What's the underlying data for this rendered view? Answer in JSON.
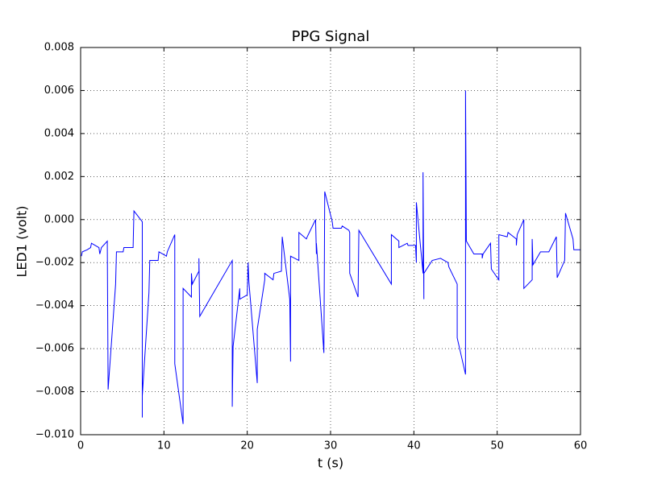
{
  "chart_data": {
    "type": "line",
    "title": "PPG Signal",
    "x_label": "t (s)",
    "y_label": "LED1 (volt)",
    "color": "#0000ff",
    "grid": true,
    "xlim": [
      0,
      60
    ],
    "xticks": [
      0,
      10,
      20,
      30,
      40,
      50,
      60
    ],
    "ylim": [
      -0.01,
      0.008
    ],
    "yticks": [
      {
        "value": -0.01,
        "label": "−0.010"
      },
      {
        "value": -0.008,
        "label": "−0.008"
      },
      {
        "value": -0.006,
        "label": "−0.006"
      },
      {
        "value": -0.004,
        "label": "−0.004"
      },
      {
        "value": -0.002,
        "label": "−0.002"
      },
      {
        "value": 0,
        "label": "0.000"
      },
      0.002,
      0.004,
      0.006,
      0.008
    ],
    "x": [
      0.1,
      0.2,
      0.8,
      1.2,
      1.3,
      2.2,
      2.3,
      2.5,
      3.2,
      3.3,
      4.2,
      4.3,
      5.1,
      5.2,
      6.3,
      6.4,
      7.4,
      7.4,
      7.4,
      8.2,
      8.3,
      9.3,
      9.4,
      10.3,
      10.4,
      11.3,
      11.3,
      12.3,
      12.3,
      13.3,
      13.3,
      13.4,
      14.2,
      14.2,
      14.3,
      18.2,
      18.2,
      18.3,
      19.1,
      19.1,
      20.0,
      20.1,
      20.2,
      21.2,
      21.2,
      22.1,
      22.1,
      23.1,
      23.2,
      24.1,
      24.2,
      25.1,
      25.2,
      25.2,
      26.2,
      26.2,
      27.1,
      27.2,
      28.2,
      28.3,
      28.3,
      29.2,
      29.3,
      30.2,
      30.3,
      31.3,
      31.4,
      32.2,
      32.3,
      32.3,
      33.3,
      33.4,
      37.3,
      37.3,
      38.2,
      38.2,
      39.2,
      39.3,
      40.2,
      40.3,
      40.3,
      41.1,
      41.1,
      41.2,
      41.2,
      42.2,
      43.2,
      44.1,
      44.2,
      45.2,
      45.2,
      46.2,
      46.2,
      46.3,
      47.2,
      48.2,
      48.2,
      48.3,
      49.2,
      49.3,
      50.2,
      50.2,
      51.2,
      51.3,
      52.3,
      52.3,
      52.4,
      53.2,
      53.2,
      54.2,
      54.2,
      54.3,
      55.2,
      55.3,
      56.2,
      57.1,
      57.2,
      58.1,
      58.2,
      59.1,
      59.2,
      60
    ],
    "values": [
      -0.0017,
      -0.0015,
      -0.0014,
      -0.0013,
      -0.0011,
      -0.0013,
      -0.0016,
      -0.0013,
      -0.001,
      -0.0079,
      -0.003,
      -0.0015,
      -0.0015,
      -0.0013,
      -0.0013,
      0.0004,
      -0.0001,
      -0.0092,
      -0.0082,
      -0.0034,
      -0.0019,
      -0.0019,
      -0.0015,
      -0.0017,
      -0.0015,
      -0.0007,
      -0.0067,
      -0.0095,
      -0.0032,
      -0.0036,
      -0.0025,
      -0.003,
      -0.0024,
      -0.0018,
      -0.0045,
      -0.0019,
      -0.0087,
      -0.0059,
      -0.0032,
      -0.0037,
      -0.0035,
      -0.002,
      -0.0029,
      -0.0076,
      -0.0051,
      -0.0028,
      -0.0025,
      -0.0028,
      -0.0025,
      -0.0024,
      -0.0008,
      -0.0037,
      -0.0066,
      -0.0017,
      -0.0019,
      -0.0006,
      -0.0009,
      -0.0008,
      0.0,
      -0.0016,
      -0.0011,
      -0.0062,
      0.0013,
      -0.0001,
      -0.0004,
      -0.0004,
      -0.0003,
      -0.0005,
      -0.0006,
      -0.0025,
      -0.0036,
      -0.0005,
      -0.003,
      -0.0007,
      -0.001,
      -0.0013,
      -0.0011,
      -0.0012,
      -0.0012,
      -0.002,
      0.0008,
      -0.0025,
      0.0022,
      -0.0037,
      -0.0025,
      -0.0019,
      -0.0018,
      -0.002,
      -0.0022,
      -0.003,
      -0.0055,
      -0.0072,
      0.006,
      -0.001,
      -0.0016,
      -0.0016,
      -0.0018,
      -0.0016,
      -0.0011,
      -0.0023,
      -0.0028,
      -0.0007,
      -0.0008,
      -0.0006,
      -0.0009,
      -0.0012,
      -0.0007,
      0.0,
      -0.0032,
      -0.0028,
      -0.0009,
      -0.0021,
      -0.0015,
      -0.0015,
      -0.0015,
      -0.0008,
      -0.0027,
      -0.0019,
      0.0003,
      -0.0009,
      -0.0014,
      -0.0014
    ]
  }
}
